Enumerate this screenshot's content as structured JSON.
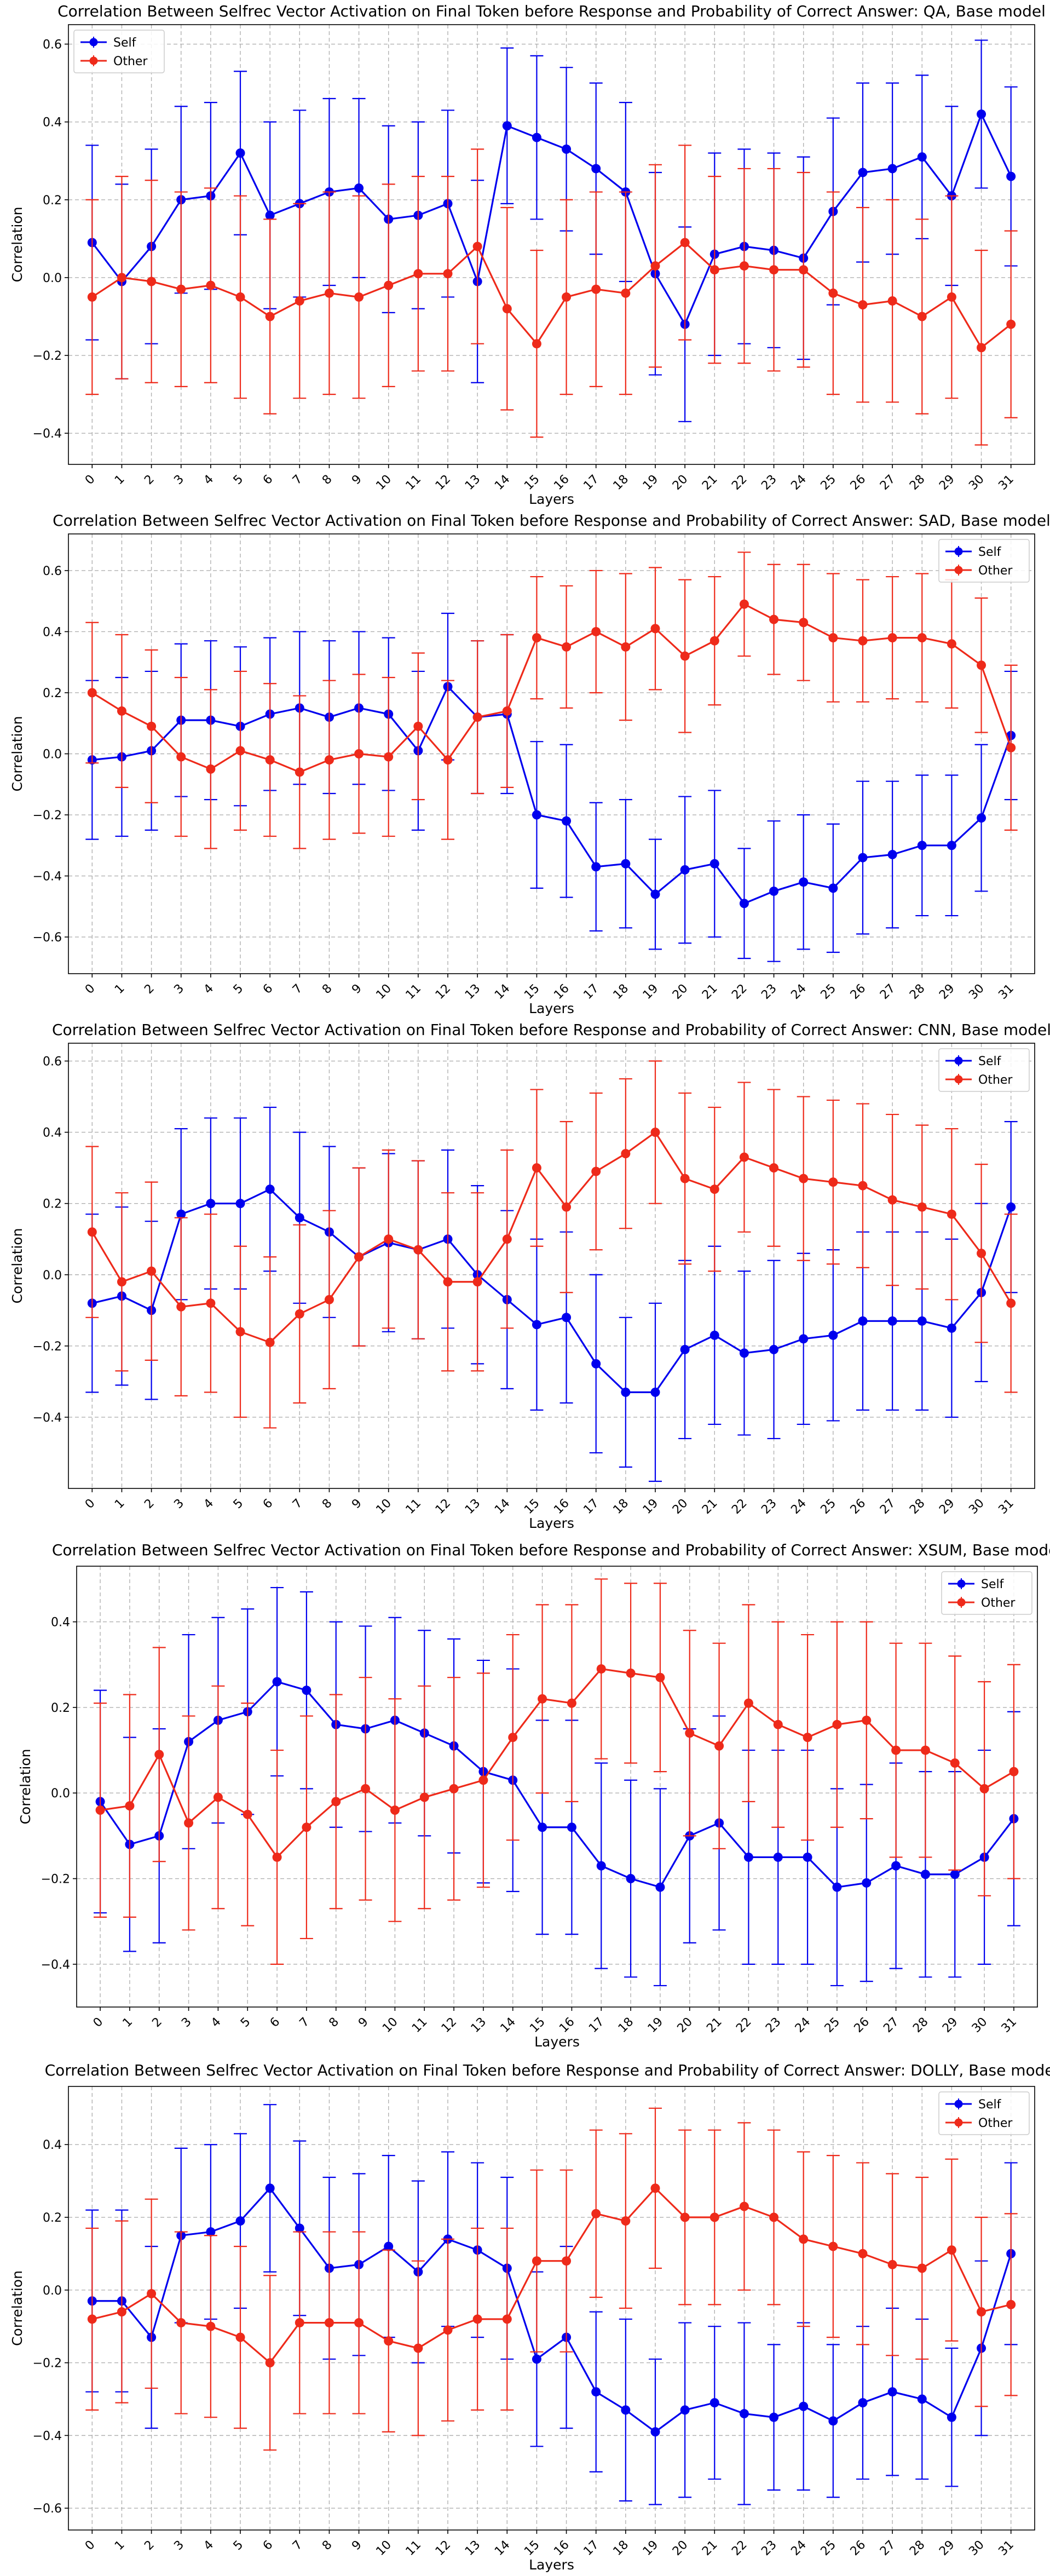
{
  "figure": {
    "colors": {
      "self": "#0000ee",
      "other": "#ee2a1a",
      "grid": "#b0b0b0"
    }
  },
  "chart_data": [
    {
      "type": "line",
      "title": "Correlation Between Selfrec Vector Activation on Final Token before Response and Probability of Correct Answer: QA, Base model",
      "xlabel": "Layers",
      "ylabel": "Correlation",
      "x": [
        0,
        1,
        2,
        3,
        4,
        5,
        6,
        7,
        8,
        9,
        10,
        11,
        12,
        13,
        14,
        15,
        16,
        17,
        18,
        19,
        20,
        21,
        22,
        23,
        24,
        25,
        26,
        27,
        28,
        29,
        30,
        31
      ],
      "ylim": [
        -0.48,
        0.65
      ],
      "yticks": [
        -0.4,
        -0.2,
        0.0,
        0.2,
        0.4,
        0.6
      ],
      "ytick_labels": [
        "−0.4",
        "−0.2",
        "0.0",
        "0.2",
        "0.4",
        "0.6"
      ],
      "legend_loc": "upper left",
      "grid": true,
      "series": [
        {
          "name": "Self",
          "values": [
            0.09,
            -0.01,
            0.08,
            0.2,
            0.21,
            0.32,
            0.16,
            0.19,
            0.22,
            0.23,
            0.15,
            0.16,
            0.19,
            -0.01,
            0.39,
            0.36,
            0.33,
            0.28,
            0.22,
            0.01,
            -0.12,
            0.06,
            0.08,
            0.07,
            0.05,
            0.17,
            0.27,
            0.28,
            0.31,
            0.21,
            0.42,
            0.26
          ],
          "err": [
            0.25,
            0.25,
            0.25,
            0.24,
            0.24,
            0.21,
            0.24,
            0.24,
            0.24,
            0.23,
            0.24,
            0.24,
            0.24,
            0.26,
            0.2,
            0.21,
            0.21,
            0.22,
            0.23,
            0.26,
            0.25,
            0.26,
            0.25,
            0.25,
            0.26,
            0.24,
            0.23,
            0.22,
            0.21,
            0.23,
            0.19,
            0.23
          ]
        },
        {
          "name": "Other",
          "values": [
            -0.05,
            0.0,
            -0.01,
            -0.03,
            -0.02,
            -0.05,
            -0.1,
            -0.06,
            -0.04,
            -0.05,
            -0.02,
            0.01,
            0.01,
            0.08,
            -0.08,
            -0.17,
            -0.05,
            -0.03,
            -0.04,
            0.03,
            0.09,
            0.02,
            0.03,
            0.02,
            0.02,
            -0.04,
            -0.07,
            -0.06,
            -0.1,
            -0.05,
            -0.18,
            -0.12
          ],
          "err": [
            0.25,
            0.26,
            0.26,
            0.25,
            0.25,
            0.26,
            0.25,
            0.25,
            0.26,
            0.26,
            0.26,
            0.25,
            0.25,
            0.25,
            0.26,
            0.24,
            0.25,
            0.25,
            0.26,
            0.26,
            0.25,
            0.24,
            0.25,
            0.26,
            0.25,
            0.26,
            0.25,
            0.26,
            0.25,
            0.26,
            0.25,
            0.24
          ]
        }
      ]
    },
    {
      "type": "line",
      "title": "Correlation Between Selfrec Vector Activation on Final Token before Response and Probability of Correct Answer: SAD, Base model",
      "xlabel": "Layers",
      "ylabel": "Correlation",
      "x": [
        0,
        1,
        2,
        3,
        4,
        5,
        6,
        7,
        8,
        9,
        10,
        11,
        12,
        13,
        14,
        15,
        16,
        17,
        18,
        19,
        20,
        21,
        22,
        23,
        24,
        25,
        26,
        27,
        28,
        29,
        30,
        31
      ],
      "ylim": [
        -0.72,
        0.72
      ],
      "yticks": [
        -0.6,
        -0.4,
        -0.2,
        0.0,
        0.2,
        0.4,
        0.6
      ],
      "ytick_labels": [
        "−0.6",
        "−0.4",
        "−0.2",
        "0.0",
        "0.2",
        "0.4",
        "0.6"
      ],
      "legend_loc": "upper right",
      "grid": true,
      "series": [
        {
          "name": "Self",
          "values": [
            -0.02,
            -0.01,
            0.01,
            0.11,
            0.11,
            0.09,
            0.13,
            0.15,
            0.12,
            0.15,
            0.13,
            0.01,
            0.22,
            0.12,
            0.13,
            -0.2,
            -0.22,
            -0.37,
            -0.36,
            -0.46,
            -0.38,
            -0.36,
            -0.49,
            -0.45,
            -0.42,
            -0.44,
            -0.34,
            -0.33,
            -0.3,
            -0.3,
            -0.21,
            0.06
          ],
          "err": [
            0.26,
            0.26,
            0.26,
            0.25,
            0.26,
            0.26,
            0.25,
            0.25,
            0.25,
            0.25,
            0.25,
            0.26,
            0.24,
            0.25,
            0.26,
            0.24,
            0.25,
            0.21,
            0.21,
            0.18,
            0.24,
            0.24,
            0.18,
            0.23,
            0.22,
            0.21,
            0.25,
            0.24,
            0.23,
            0.23,
            0.24,
            0.21
          ]
        },
        {
          "name": "Other",
          "values": [
            0.2,
            0.14,
            0.09,
            -0.01,
            -0.05,
            0.01,
            -0.02,
            -0.06,
            -0.02,
            0.0,
            -0.01,
            0.09,
            -0.02,
            0.12,
            0.14,
            0.38,
            0.35,
            0.4,
            0.35,
            0.41,
            0.32,
            0.37,
            0.49,
            0.44,
            0.43,
            0.38,
            0.37,
            0.38,
            0.38,
            0.36,
            0.29,
            0.02
          ],
          "err": [
            0.23,
            0.25,
            0.25,
            0.26,
            0.26,
            0.26,
            0.25,
            0.25,
            0.26,
            0.26,
            0.26,
            0.24,
            0.26,
            0.25,
            0.25,
            0.2,
            0.2,
            0.2,
            0.24,
            0.2,
            0.25,
            0.21,
            0.17,
            0.18,
            0.19,
            0.21,
            0.2,
            0.2,
            0.21,
            0.21,
            0.22,
            0.27
          ]
        }
      ]
    },
    {
      "type": "line",
      "title": "Correlation Between Selfrec Vector Activation on Final Token before Response and Probability of Correct Answer: CNN, Base model",
      "xlabel": "Layers",
      "ylabel": "Correlation",
      "x": [
        0,
        1,
        2,
        3,
        4,
        5,
        6,
        7,
        8,
        9,
        10,
        11,
        12,
        13,
        14,
        15,
        16,
        17,
        18,
        19,
        20,
        21,
        22,
        23,
        24,
        25,
        26,
        27,
        28,
        29,
        30,
        31
      ],
      "ylim": [
        -0.6,
        0.65
      ],
      "yticks": [
        -0.4,
        -0.2,
        0.0,
        0.2,
        0.4,
        0.6
      ],
      "ytick_labels": [
        "−0.4",
        "−0.2",
        "0.0",
        "0.2",
        "0.4",
        "0.6"
      ],
      "legend_loc": "upper right",
      "grid": true,
      "series": [
        {
          "name": "Self",
          "values": [
            -0.08,
            -0.06,
            -0.1,
            0.17,
            0.2,
            0.2,
            0.24,
            0.16,
            0.12,
            0.05,
            0.09,
            0.07,
            0.1,
            0.0,
            -0.07,
            -0.14,
            -0.12,
            -0.25,
            -0.33,
            -0.33,
            -0.21,
            -0.17,
            -0.22,
            -0.21,
            -0.18,
            -0.17,
            -0.13,
            -0.13,
            -0.13,
            -0.15,
            -0.05,
            0.19
          ],
          "err": [
            0.25,
            0.25,
            0.25,
            0.24,
            0.24,
            0.24,
            0.23,
            0.24,
            0.24,
            0.25,
            0.25,
            0.25,
            0.25,
            0.25,
            0.25,
            0.24,
            0.24,
            0.25,
            0.21,
            0.25,
            0.25,
            0.25,
            0.23,
            0.25,
            0.24,
            0.24,
            0.25,
            0.25,
            0.25,
            0.25,
            0.25,
            0.24
          ]
        },
        {
          "name": "Other",
          "values": [
            0.12,
            -0.02,
            0.01,
            -0.09,
            -0.08,
            -0.16,
            -0.19,
            -0.11,
            -0.07,
            0.05,
            0.1,
            0.07,
            -0.02,
            -0.02,
            0.1,
            0.3,
            0.19,
            0.29,
            0.34,
            0.4,
            0.27,
            0.24,
            0.33,
            0.3,
            0.27,
            0.26,
            0.25,
            0.21,
            0.19,
            0.17,
            0.06,
            -0.08
          ],
          "err": [
            0.24,
            0.25,
            0.25,
            0.25,
            0.25,
            0.24,
            0.24,
            0.25,
            0.25,
            0.25,
            0.25,
            0.25,
            0.25,
            0.25,
            0.25,
            0.22,
            0.24,
            0.22,
            0.21,
            0.2,
            0.24,
            0.23,
            0.21,
            0.22,
            0.23,
            0.23,
            0.23,
            0.24,
            0.23,
            0.24,
            0.25,
            0.25
          ]
        }
      ]
    },
    {
      "type": "line",
      "title": "Correlation Between Selfrec Vector Activation on Final Token before Response and Probability of Correct Answer: XSUM, Base model",
      "xlabel": "Layers",
      "ylabel": "Correlation",
      "x": [
        0,
        1,
        2,
        3,
        4,
        5,
        6,
        7,
        8,
        9,
        10,
        11,
        12,
        13,
        14,
        15,
        16,
        17,
        18,
        19,
        20,
        21,
        22,
        23,
        24,
        25,
        26,
        27,
        28,
        29,
        30,
        31
      ],
      "ylim": [
        -0.5,
        0.53
      ],
      "yticks": [
        -0.4,
        -0.2,
        0.0,
        0.2,
        0.4
      ],
      "ytick_labels": [
        "−0.4",
        "−0.2",
        "0.0",
        "0.2",
        "0.4"
      ],
      "legend_loc": "upper right",
      "grid": true,
      "series": [
        {
          "name": "Self",
          "values": [
            -0.02,
            -0.12,
            -0.1,
            0.12,
            0.17,
            0.19,
            0.26,
            0.24,
            0.16,
            0.15,
            0.17,
            0.14,
            0.11,
            0.05,
            0.03,
            -0.08,
            -0.08,
            -0.17,
            -0.2,
            -0.22,
            -0.1,
            -0.07,
            -0.15,
            -0.15,
            -0.15,
            -0.22,
            -0.21,
            -0.17,
            -0.19,
            -0.19,
            -0.15,
            -0.06
          ],
          "err": [
            0.26,
            0.25,
            0.25,
            0.25,
            0.24,
            0.24,
            0.22,
            0.23,
            0.24,
            0.24,
            0.24,
            0.24,
            0.25,
            0.26,
            0.26,
            0.25,
            0.25,
            0.24,
            0.23,
            0.23,
            0.25,
            0.25,
            0.25,
            0.25,
            0.25,
            0.23,
            0.23,
            0.24,
            0.24,
            0.24,
            0.25,
            0.25
          ]
        },
        {
          "name": "Other",
          "values": [
            -0.04,
            -0.03,
            0.09,
            -0.07,
            -0.01,
            -0.05,
            -0.15,
            -0.08,
            -0.02,
            0.01,
            -0.04,
            -0.01,
            0.01,
            0.03,
            0.13,
            0.22,
            0.21,
            0.29,
            0.28,
            0.27,
            0.14,
            0.11,
            0.21,
            0.16,
            0.13,
            0.16,
            0.17,
            0.1,
            0.1,
            0.07,
            0.01,
            0.05
          ],
          "err": [
            0.25,
            0.26,
            0.25,
            0.25,
            0.26,
            0.26,
            0.25,
            0.26,
            0.25,
            0.26,
            0.26,
            0.26,
            0.26,
            0.25,
            0.24,
            0.22,
            0.23,
            0.21,
            0.21,
            0.22,
            0.24,
            0.24,
            0.23,
            0.24,
            0.24,
            0.24,
            0.23,
            0.25,
            0.25,
            0.25,
            0.25,
            0.25
          ]
        }
      ]
    },
    {
      "type": "line",
      "title": "Correlation Between Selfrec Vector Activation on Final Token before Response and Probability of Correct Answer: DOLLY, Base model",
      "xlabel": "Layers",
      "ylabel": "Correlation",
      "x": [
        0,
        1,
        2,
        3,
        4,
        5,
        6,
        7,
        8,
        9,
        10,
        11,
        12,
        13,
        14,
        15,
        16,
        17,
        18,
        19,
        20,
        21,
        22,
        23,
        24,
        25,
        26,
        27,
        28,
        29,
        30,
        31
      ],
      "ylim": [
        -0.66,
        0.56
      ],
      "yticks": [
        -0.6,
        -0.4,
        -0.2,
        0.0,
        0.2,
        0.4
      ],
      "ytick_labels": [
        "−0.6",
        "−0.4",
        "−0.2",
        "0.0",
        "0.2",
        "0.4"
      ],
      "legend_loc": "upper right",
      "grid": true,
      "series": [
        {
          "name": "Self",
          "values": [
            -0.03,
            -0.03,
            -0.13,
            0.15,
            0.16,
            0.19,
            0.28,
            0.17,
            0.06,
            0.07,
            0.12,
            0.05,
            0.14,
            0.11,
            0.06,
            -0.19,
            -0.13,
            -0.28,
            -0.33,
            -0.39,
            -0.33,
            -0.31,
            -0.34,
            -0.35,
            -0.32,
            -0.36,
            -0.31,
            -0.28,
            -0.3,
            -0.35,
            -0.16,
            0.1
          ],
          "err": [
            0.25,
            0.25,
            0.25,
            0.24,
            0.24,
            0.24,
            0.23,
            0.24,
            0.25,
            0.25,
            0.25,
            0.25,
            0.24,
            0.24,
            0.25,
            0.24,
            0.25,
            0.22,
            0.25,
            0.2,
            0.24,
            0.21,
            0.25,
            0.2,
            0.23,
            0.21,
            0.21,
            0.23,
            0.22,
            0.19,
            0.24,
            0.25
          ]
        },
        {
          "name": "Other",
          "values": [
            -0.08,
            -0.06,
            -0.01,
            -0.09,
            -0.1,
            -0.13,
            -0.2,
            -0.09,
            -0.09,
            -0.09,
            -0.14,
            -0.16,
            -0.11,
            -0.08,
            -0.08,
            0.08,
            0.08,
            0.21,
            0.19,
            0.28,
            0.2,
            0.2,
            0.23,
            0.2,
            0.14,
            0.12,
            0.1,
            0.07,
            0.06,
            0.11,
            -0.06,
            -0.04
          ],
          "err": [
            0.25,
            0.25,
            0.26,
            0.25,
            0.25,
            0.25,
            0.24,
            0.25,
            0.25,
            0.25,
            0.25,
            0.24,
            0.25,
            0.25,
            0.25,
            0.25,
            0.25,
            0.23,
            0.24,
            0.22,
            0.24,
            0.24,
            0.23,
            0.24,
            0.24,
            0.25,
            0.25,
            0.25,
            0.25,
            0.25,
            0.26,
            0.25
          ]
        }
      ]
    }
  ]
}
